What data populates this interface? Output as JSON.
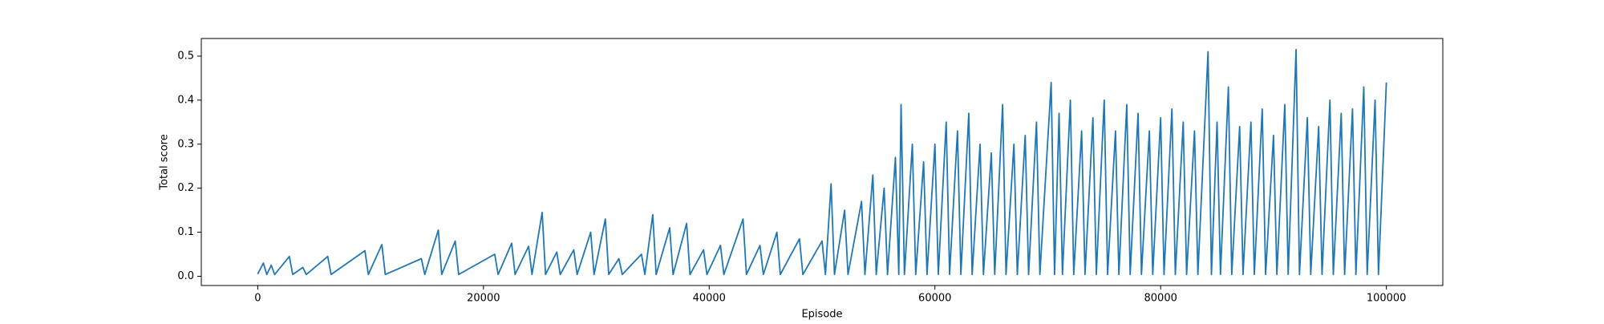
{
  "chart_data": {
    "type": "line",
    "x_label": "Episode",
    "y_label": "Total score",
    "x": [
      0,
      500,
      800,
      1200,
      1500,
      2800,
      3100,
      4000,
      4300,
      6200,
      6500,
      9500,
      9800,
      11000,
      11300,
      14500,
      14800,
      16000,
      16300,
      17500,
      17800,
      21000,
      21300,
      22500,
      22800,
      24000,
      24300,
      25200,
      25500,
      26500,
      26800,
      28000,
      28300,
      29500,
      29800,
      30800,
      31100,
      32000,
      32300,
      34000,
      34300,
      35000,
      35300,
      36500,
      36800,
      38000,
      38300,
      39500,
      39800,
      41000,
      41300,
      43000,
      43300,
      44500,
      44800,
      46000,
      46300,
      48000,
      48300,
      50000,
      50300,
      50800,
      51100,
      52000,
      52300,
      53500,
      53800,
      54500,
      54800,
      55500,
      55800,
      56500,
      56800,
      57000,
      57300,
      58000,
      58300,
      59000,
      59300,
      60000,
      60300,
      61000,
      61300,
      62000,
      62300,
      63000,
      63300,
      64000,
      64300,
      65000,
      65300,
      66000,
      66300,
      67000,
      67300,
      68000,
      68300,
      69000,
      69300,
      70300,
      70600,
      71000,
      71300,
      72000,
      72300,
      73000,
      73300,
      74000,
      74300,
      75000,
      75300,
      76000,
      76300,
      77000,
      77300,
      78000,
      78300,
      79000,
      79300,
      80000,
      80300,
      81000,
      81300,
      82000,
      82300,
      83000,
      83300,
      84200,
      84500,
      85000,
      85300,
      86000,
      86300,
      87000,
      87300,
      88000,
      88300,
      89000,
      89300,
      90000,
      90300,
      91000,
      91300,
      92000,
      92300,
      93000,
      93300,
      94000,
      94300,
      95000,
      95300,
      96000,
      96300,
      97000,
      97300,
      98000,
      98300,
      99000,
      99300,
      100000
    ],
    "series": [
      {
        "name": "Total score",
        "color": "#1f77b4",
        "values": [
          0.005,
          0.03,
          0.004,
          0.025,
          0.004,
          0.045,
          0.004,
          0.02,
          0.004,
          0.045,
          0.004,
          0.058,
          0.004,
          0.072,
          0.004,
          0.04,
          0.004,
          0.105,
          0.004,
          0.08,
          0.004,
          0.05,
          0.004,
          0.075,
          0.004,
          0.068,
          0.004,
          0.145,
          0.004,
          0.055,
          0.004,
          0.06,
          0.004,
          0.1,
          0.004,
          0.13,
          0.004,
          0.04,
          0.004,
          0.05,
          0.004,
          0.14,
          0.004,
          0.11,
          0.004,
          0.12,
          0.004,
          0.06,
          0.004,
          0.07,
          0.004,
          0.13,
          0.004,
          0.07,
          0.004,
          0.1,
          0.004,
          0.085,
          0.004,
          0.08,
          0.004,
          0.21,
          0.004,
          0.15,
          0.004,
          0.17,
          0.004,
          0.23,
          0.004,
          0.2,
          0.004,
          0.27,
          0.004,
          0.39,
          0.004,
          0.3,
          0.004,
          0.26,
          0.004,
          0.3,
          0.004,
          0.35,
          0.004,
          0.33,
          0.004,
          0.37,
          0.004,
          0.3,
          0.004,
          0.28,
          0.004,
          0.39,
          0.004,
          0.3,
          0.004,
          0.32,
          0.004,
          0.35,
          0.004,
          0.44,
          0.004,
          0.37,
          0.004,
          0.4,
          0.004,
          0.33,
          0.004,
          0.36,
          0.004,
          0.4,
          0.004,
          0.33,
          0.004,
          0.39,
          0.004,
          0.37,
          0.004,
          0.33,
          0.004,
          0.36,
          0.004,
          0.38,
          0.004,
          0.35,
          0.004,
          0.33,
          0.004,
          0.51,
          0.004,
          0.35,
          0.004,
          0.43,
          0.004,
          0.34,
          0.004,
          0.35,
          0.004,
          0.38,
          0.004,
          0.32,
          0.004,
          0.39,
          0.004,
          0.515,
          0.004,
          0.36,
          0.004,
          0.34,
          0.004,
          0.4,
          0.004,
          0.37,
          0.004,
          0.38,
          0.004,
          0.43,
          0.004,
          0.4,
          0.004,
          0.44
        ]
      }
    ],
    "xlim": [
      -5000,
      105000
    ],
    "ylim": [
      -0.021,
      0.54
    ],
    "xticks": [
      0,
      20000,
      40000,
      60000,
      80000,
      100000
    ],
    "yticks": [
      {
        "value": 0,
        "label": "0.0"
      },
      0.1,
      0.2,
      0.3,
      0.4,
      0.5
    ]
  }
}
